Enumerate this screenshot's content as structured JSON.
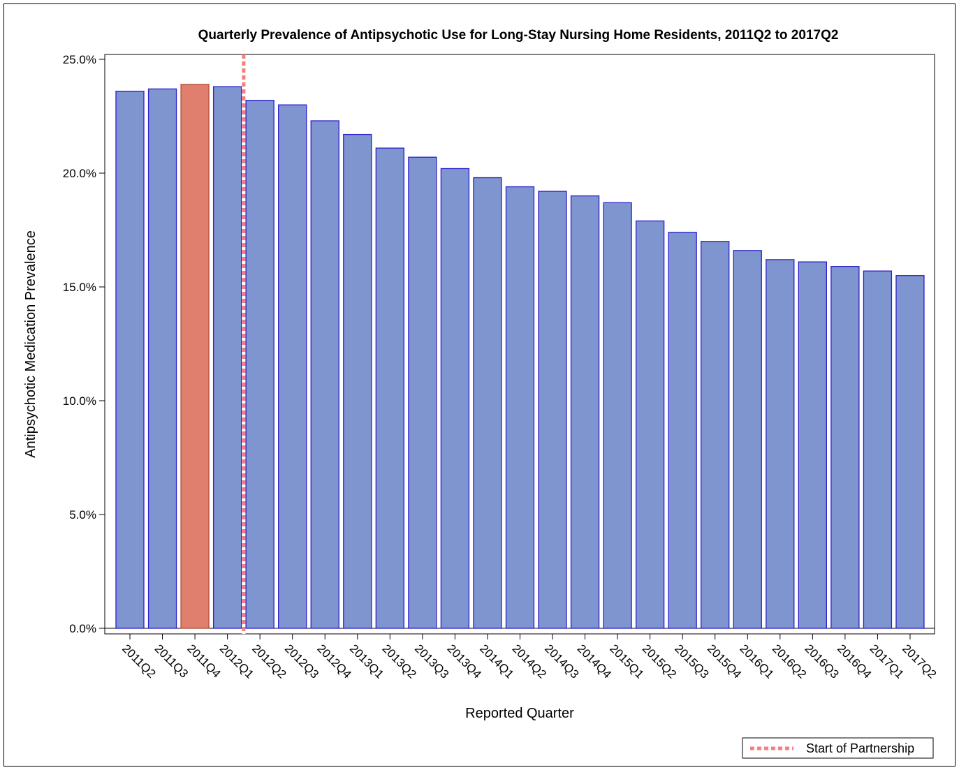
{
  "chart_data": {
    "type": "bar",
    "title": "Quarterly Prevalence of Antipsychotic Use for Long-Stay Nursing Home Residents, 2011Q2 to 2017Q2",
    "xlabel": "Reported Quarter",
    "ylabel": "Antipsychotic Medication Prevalence",
    "ylim": [
      0,
      25
    ],
    "yticks": [
      0,
      5,
      10,
      15,
      20,
      25
    ],
    "ytick_labels": [
      "0.0%",
      "5.0%",
      "10.0%",
      "15.0%",
      "20.0%",
      "25.0%"
    ],
    "categories": [
      "2011Q2",
      "2011Q3",
      "2011Q4",
      "2012Q1",
      "2012Q2",
      "2012Q3",
      "2012Q4",
      "2013Q1",
      "2013Q2",
      "2013Q3",
      "2013Q4",
      "2014Q1",
      "2014Q2",
      "2014Q3",
      "2014Q4",
      "2015Q1",
      "2015Q2",
      "2015Q3",
      "2015Q4",
      "2016Q1",
      "2016Q2",
      "2016Q3",
      "2016Q4",
      "2017Q1",
      "2017Q2"
    ],
    "values": [
      23.6,
      23.7,
      23.9,
      23.8,
      23.2,
      23.0,
      22.3,
      21.7,
      21.1,
      20.7,
      20.2,
      19.8,
      19.4,
      19.2,
      19.0,
      18.7,
      17.9,
      17.4,
      17.0,
      16.6,
      16.2,
      16.1,
      15.9,
      15.7,
      15.5
    ],
    "highlight_category": "2011Q4",
    "reference_line": {
      "label": "Start of Partnership",
      "between": [
        "2012Q1",
        "2012Q2"
      ],
      "style": "dotted",
      "color": "#f47f7f"
    },
    "legend": {
      "position": "bottom-right",
      "entries": [
        "Start of Partnership"
      ]
    },
    "grid": false
  },
  "colors": {
    "bar_fill": "#7f95cf",
    "bar_edge": "#2a1fc9",
    "highlight_fill": "#e07f6e",
    "reference_line": "#f47f7f",
    "axis": "#000000"
  }
}
